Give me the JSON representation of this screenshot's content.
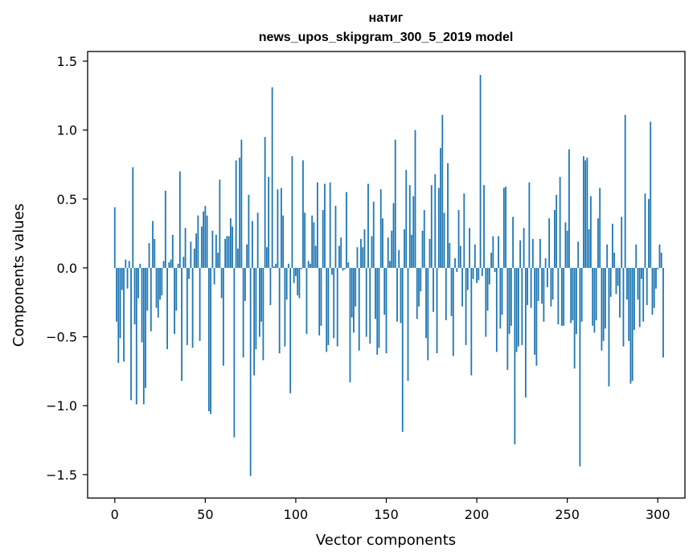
{
  "chart_data": {
    "type": "bar",
    "title": "натиг",
    "subtitle": "news_upos_skipgram_300_5_2019 model",
    "xlabel": "Vector components",
    "ylabel": "Components values",
    "xlim": [
      -15,
      315
    ],
    "ylim": [
      -1.67,
      1.57
    ],
    "xticks": [
      0,
      50,
      100,
      150,
      200,
      250,
      300
    ],
    "xtick_labels": [
      "0",
      "50",
      "100",
      "150",
      "200",
      "250",
      "300"
    ],
    "yticks": [
      -1.5,
      -1.0,
      -0.5,
      0.0,
      0.5,
      1.0,
      1.5
    ],
    "ytick_labels": [
      "−1.5",
      "−1.0",
      "−0.5",
      "0.0",
      "0.5",
      "1.0",
      "1.5"
    ],
    "bar_color": "#1f77b4",
    "values": [
      0.44,
      -0.39,
      -0.69,
      -0.51,
      -0.16,
      -0.68,
      0.06,
      -0.15,
      0.05,
      -0.96,
      0.73,
      -0.41,
      -0.99,
      -0.22,
      0.03,
      -0.54,
      -0.99,
      -0.87,
      -0.31,
      0.18,
      -0.46,
      0.34,
      0.21,
      -0.29,
      -0.36,
      -0.23,
      -0.2,
      0.05,
      0.56,
      -0.59,
      0.04,
      0.06,
      0.24,
      -0.48,
      -0.31,
      0.03,
      0.7,
      -0.82,
      0.08,
      0.29,
      -0.56,
      -0.08,
      0.19,
      -0.58,
      0.14,
      0.25,
      0.38,
      -0.53,
      0.3,
      0.41,
      0.45,
      0.38,
      -1.04,
      -1.06,
      0.27,
      -0.12,
      0.24,
      0.11,
      0.64,
      -0.22,
      -0.71,
      0.21,
      0.23,
      0.23,
      0.36,
      0.3,
      -1.23,
      0.78,
      0.14,
      0.8,
      0.93,
      -0.65,
      -0.24,
      0.17,
      0.53,
      -1.51,
      0.34,
      -0.78,
      -0.59,
      0.4,
      -0.5,
      -0.39,
      -0.67,
      0.95,
      0.15,
      0.66,
      -0.27,
      1.31,
      0.01,
      0.03,
      0.57,
      -0.62,
      0.58,
      0.38,
      -0.57,
      -0.23,
      0.03,
      -0.91,
      0.81,
      -0.11,
      -0.06,
      -0.2,
      -0.22,
      -0.01,
      0.78,
      0.4,
      -0.48,
      0.05,
      0.03,
      0.38,
      0.33,
      0.16,
      0.62,
      -0.49,
      -0.42,
      0.42,
      0.61,
      -0.61,
      -0.56,
      0.62,
      -0.05,
      -0.51,
      0.45,
      -0.57,
      0.16,
      0.22,
      -0.02,
      -0.01,
      0.55,
      0.04,
      -0.83,
      -0.36,
      -0.47,
      -0.28,
      0.15,
      -0.6,
      0.21,
      0.15,
      0.28,
      -0.5,
      0.61,
      -0.55,
      0.23,
      0.48,
      -0.37,
      -0.63,
      -0.58,
      0.57,
      0.36,
      -0.34,
      -0.62,
      0.22,
      0.05,
      0.27,
      0.47,
      0.93,
      -0.39,
      0.13,
      -0.4,
      -1.19,
      0.28,
      0.71,
      -0.82,
      0.6,
      0.24,
      0.52,
      1.0,
      -0.37,
      -0.28,
      -0.17,
      0.27,
      0.42,
      -0.51,
      -0.67,
      0.21,
      0.6,
      -0.32,
      0.68,
      -0.62,
      0.58,
      0.87,
      1.11,
      0.4,
      -0.38,
      0.76,
      0.18,
      -0.35,
      -0.64,
      0.07,
      -0.03,
      0.42,
      0.16,
      -0.28,
      0.54,
      -0.56,
      -0.16,
      0.29,
      -0.78,
      -0.08,
      0.17,
      -0.11,
      -0.09,
      1.4,
      -0.06,
      0.6,
      -0.5,
      -0.31,
      -0.12,
      0.11,
      0.23,
      -0.03,
      -0.61,
      0.23,
      -0.44,
      -0.34,
      0.58,
      0.59,
      -0.74,
      -0.48,
      -0.42,
      0.37,
      -1.28,
      -0.61,
      -0.57,
      0.2,
      -0.56,
      0.29,
      -0.94,
      -0.27,
      0.62,
      -0.29,
      0.21,
      -0.63,
      -0.71,
      -0.24,
      0.21,
      -0.26,
      -0.39,
      0.07,
      -0.14,
      0.36,
      -0.28,
      -0.23,
      0.42,
      0.53,
      -0.41,
      0.66,
      -0.42,
      -0.42,
      0.33,
      0.27,
      0.86,
      -0.4,
      -0.38,
      -0.73,
      -0.48,
      0.19,
      -1.44,
      -0.39,
      0.81,
      0.78,
      0.8,
      0.28,
      0.52,
      -0.42,
      -0.47,
      -0.38,
      0.36,
      0.58,
      -0.6,
      -0.53,
      -0.44,
      0.17,
      -0.86,
      -0.21,
      0.32,
      0.11,
      -0.19,
      -0.13,
      -0.36,
      0.37,
      -0.57,
      1.11,
      -0.23,
      -0.53,
      -0.84,
      -0.82,
      -0.45,
      0.17,
      -0.23,
      -0.43,
      -0.08,
      -0.39,
      0.54,
      -0.27,
      0.5,
      1.06,
      -0.34,
      -0.29,
      -0.15,
      -0.01,
      0.17,
      0.11,
      -0.65
    ]
  }
}
